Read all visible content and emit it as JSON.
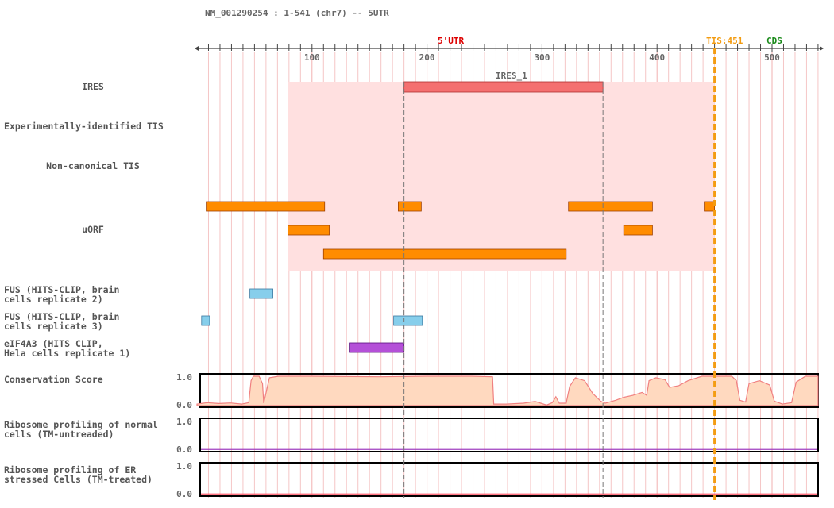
{
  "header": {
    "title": "NM_001290254 : 1-541 (chr7) -- 5UTR",
    "utr_label": "5'UTR",
    "tis_label": "TIS:451",
    "cds_label": "CDS",
    "utr_color": "#dd0000",
    "tis_color": "#f39c12",
    "cds_color": "#1a8a1a"
  },
  "tracks": [
    {
      "id": "ires",
      "label": [
        "IRES"
      ],
      "center": true
    },
    {
      "id": "exp-tis",
      "label": [
        "Experimentally-identified TIS"
      ],
      "center": false
    },
    {
      "id": "noncanon-tis",
      "label": [
        "Non-canonical TIS"
      ],
      "center": true
    },
    {
      "id": "uorf",
      "label": [
        "uORF"
      ],
      "center": true
    },
    {
      "id": "fus-2",
      "label": [
        "FUS (HITS-CLIP, brain",
        "cells replicate 2)"
      ],
      "center": false
    },
    {
      "id": "fus-3",
      "label": [
        "FUS (HITS-CLIP, brain",
        "cells replicate 3)"
      ],
      "center": false
    },
    {
      "id": "eif4a3",
      "label": [
        "eIF4A3 (HITS CLIP,",
        "Hela cells replicate 1)"
      ],
      "center": false
    },
    {
      "id": "conservation",
      "label": [
        "Conservation Score"
      ],
      "center": false
    },
    {
      "id": "ribo-normal",
      "label": [
        "Ribosome profiling of normal",
        "cells (TM-untreaded)"
      ],
      "center": false
    },
    {
      "id": "ribo-er",
      "label": [
        "Ribosome profiling of ER",
        "stressed Cells (TM-treated)"
      ],
      "center": false
    }
  ],
  "chart_data": {
    "type": "genome-track",
    "x_range": [
      1,
      541
    ],
    "axis_ticks": [
      100,
      200,
      300,
      400,
      500
    ],
    "tis_position": 451,
    "ires_region": {
      "name": "IRES_1",
      "start": 80,
      "end": 451
    },
    "ires_feature": {
      "name": "IRES_1",
      "start": 181,
      "end": 354
    },
    "uorfs": [
      {
        "start": 9,
        "end": 112
      },
      {
        "start": 176,
        "end": 196
      },
      {
        "start": 324,
        "end": 397
      },
      {
        "start": 442,
        "end": 451
      },
      {
        "start": 80,
        "end": 116
      },
      {
        "start": 372,
        "end": 397
      },
      {
        "start": 111,
        "end": 322
      }
    ],
    "fus_rep2": [
      {
        "start": 47,
        "end": 67
      }
    ],
    "fus_rep3": [
      {
        "start": 5,
        "end": 12
      },
      {
        "start": 172,
        "end": 197
      }
    ],
    "eif4a3_rep1": [
      {
        "start": 134,
        "end": 181
      }
    ],
    "conservation": {
      "ylim": [
        0,
        1
      ],
      "tick_labels": [
        "1.0",
        "0.0"
      ],
      "points": [
        [
          1,
          0.05
        ],
        [
          10,
          0.1
        ],
        [
          20,
          0.07
        ],
        [
          30,
          0.09
        ],
        [
          40,
          0.05
        ],
        [
          46,
          0.1
        ],
        [
          48,
          0.85
        ],
        [
          50,
          1.0
        ],
        [
          55,
          1.0
        ],
        [
          58,
          0.75
        ],
        [
          59,
          0.08
        ],
        [
          62,
          0.6
        ],
        [
          64,
          0.95
        ],
        [
          72,
          1.0
        ],
        [
          100,
          1.0
        ],
        [
          160,
          0.98
        ],
        [
          200,
          1.0
        ],
        [
          240,
          1.0
        ],
        [
          258,
          0.98
        ],
        [
          259,
          0.05
        ],
        [
          270,
          0.05
        ],
        [
          285,
          0.08
        ],
        [
          295,
          0.14
        ],
        [
          305,
          0.02
        ],
        [
          310,
          0.1
        ],
        [
          313,
          0.3
        ],
        [
          316,
          0.08
        ],
        [
          322,
          0.08
        ],
        [
          325,
          0.65
        ],
        [
          330,
          0.95
        ],
        [
          338,
          0.85
        ],
        [
          345,
          0.42
        ],
        [
          352,
          0.15
        ],
        [
          356,
          0.08
        ],
        [
          365,
          0.18
        ],
        [
          372,
          0.28
        ],
        [
          380,
          0.35
        ],
        [
          388,
          0.45
        ],
        [
          392,
          0.35
        ],
        [
          394,
          0.85
        ],
        [
          400,
          0.95
        ],
        [
          408,
          0.88
        ],
        [
          412,
          0.62
        ],
        [
          420,
          0.68
        ],
        [
          428,
          0.85
        ],
        [
          440,
          1.0
        ],
        [
          466,
          1.0
        ],
        [
          470,
          0.85
        ],
        [
          473,
          0.18
        ],
        [
          478,
          0.12
        ],
        [
          481,
          0.75
        ],
        [
          490,
          0.85
        ],
        [
          499,
          0.7
        ],
        [
          503,
          0.15
        ],
        [
          510,
          0.05
        ],
        [
          518,
          0.1
        ],
        [
          522,
          0.8
        ],
        [
          530,
          1.0
        ],
        [
          541,
          1.0
        ]
      ]
    },
    "ribo_normal": {
      "tick_labels": [
        "1.0",
        "0.0"
      ],
      "ylim": [
        0,
        1
      ],
      "value": 0.02
    },
    "ribo_er": {
      "tick_labels": [
        "1.0",
        "0.0"
      ],
      "ylim": [
        0,
        1
      ],
      "value": 0.02
    }
  },
  "colors": {
    "ires_region": "#ffe0e0",
    "ires_bar": "#f47070",
    "uorf": "#ff8c00",
    "fus": "#87ceeb",
    "eif4a3": "#b450d8",
    "conservation_fill": "#ffd9bf",
    "conservation_line": "#f08080",
    "ribo_normal_line": "#a040c0",
    "ribo_er_line": "#ff6070",
    "grid": "#f5c6c6"
  }
}
